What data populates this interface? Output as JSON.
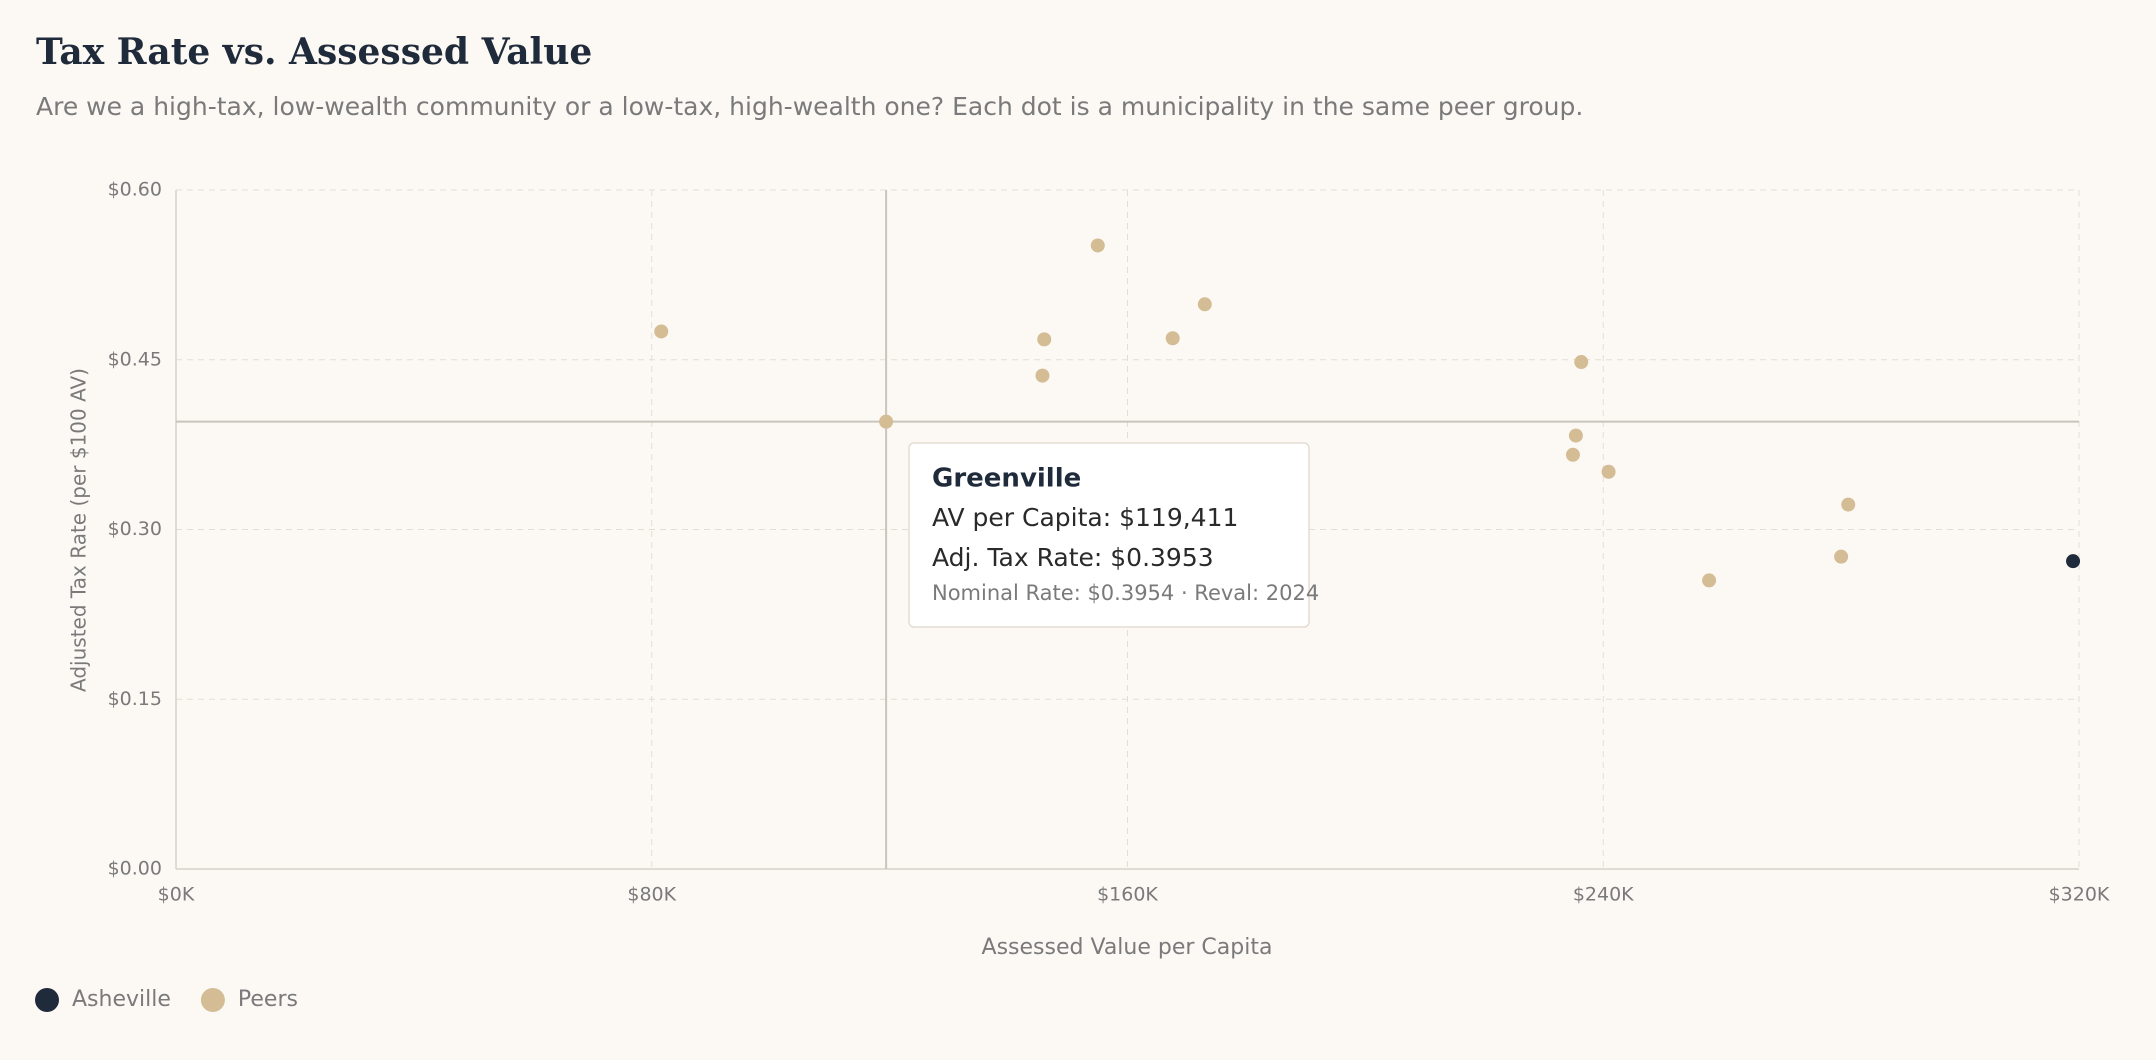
{
  "chart_data": {
    "type": "scatter",
    "title": "Tax Rate vs. Assessed Value",
    "subtitle": "Are we a high-tax, low-wealth community or a low-tax, high-wealth one? Each dot is a municipality in the same peer group.",
    "x_label": "Assessed Value per Capita",
    "y_label": "Adjusted Tax Rate (per $100 AV)",
    "xlim": [
      0,
      320000
    ],
    "ylim": [
      0,
      0.6
    ],
    "xticks": [
      {
        "value": 0,
        "label": "$0K"
      },
      {
        "value": 80000,
        "label": "$80K"
      },
      {
        "value": 160000,
        "label": "$160K"
      },
      {
        "value": 240000,
        "label": "$240K"
      },
      {
        "value": 320000,
        "label": "$320K"
      }
    ],
    "yticks": [
      {
        "value": 0,
        "label": "$0.00"
      },
      {
        "value": 0.15,
        "label": "$0.15"
      },
      {
        "value": 0.3,
        "label": "$0.30"
      },
      {
        "value": 0.45,
        "label": "$0.45"
      },
      {
        "value": 0.6,
        "label": "$0.60"
      }
    ],
    "grid": true,
    "series": [
      {
        "name": "Asheville",
        "color": "#1f2a3a",
        "x": [
          319000
        ],
        "values": [
          0.272
        ]
      },
      {
        "name": "Peers",
        "color": "#d4bc94",
        "x": [
          81600,
          119411,
          155000,
          173000,
          146000,
          145700,
          167600,
          236300,
          235400,
          234900,
          240900,
          281200,
          280000,
          257800
        ],
        "values": [
          0.475,
          0.3953,
          0.551,
          0.499,
          0.468,
          0.436,
          0.469,
          0.448,
          0.383,
          0.366,
          0.351,
          0.322,
          0.276,
          0.255
        ]
      }
    ],
    "tooltip": {
      "series": 1,
      "index": 1,
      "title": "Greenville",
      "lines": [
        "AV per Capita: $119,411",
        "Adj. Tax Rate: $0.3953",
        "Nominal Rate: $0.3954 · Reval: 2024"
      ]
    }
  }
}
